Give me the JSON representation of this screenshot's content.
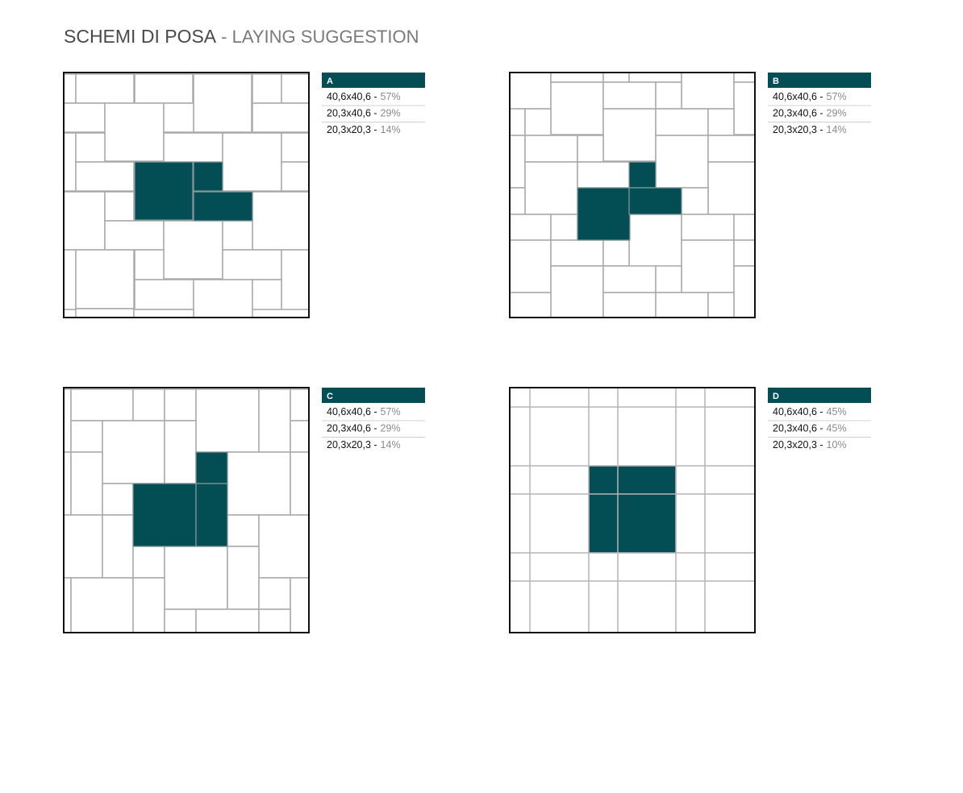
{
  "header": {
    "title": "SCHEMI DI POSA",
    "subtitle": "- LAYING SUGGESTION"
  },
  "schemes": [
    {
      "label": "A",
      "rows": [
        {
          "size": "40,6x40,6 -",
          "share": "57%"
        },
        {
          "size": "20,3x40,6 -",
          "share": "29%"
        },
        {
          "size": "20,3x20,3 -",
          "share": "14%"
        }
      ]
    },
    {
      "label": "B",
      "rows": [
        {
          "size": "40,6x40,6 -",
          "share": "57%"
        },
        {
          "size": "20,3x40,6 -",
          "share": "29%"
        },
        {
          "size": "20,3x20,3 -",
          "share": "14%"
        }
      ]
    },
    {
      "label": "C",
      "rows": [
        {
          "size": "40,6x40,6 -",
          "share": "57%"
        },
        {
          "size": "20,3x40,6 -",
          "share": "29%"
        },
        {
          "size": "20,3x20,3 -",
          "share": "14%"
        }
      ]
    },
    {
      "label": "D",
      "rows": [
        {
          "size": "40,6x40,6 -",
          "share": "45%"
        },
        {
          "size": "20,3x40,6 -",
          "share": "45%"
        },
        {
          "size": "20,3x20,3 -",
          "share": "10%"
        }
      ]
    }
  ]
}
